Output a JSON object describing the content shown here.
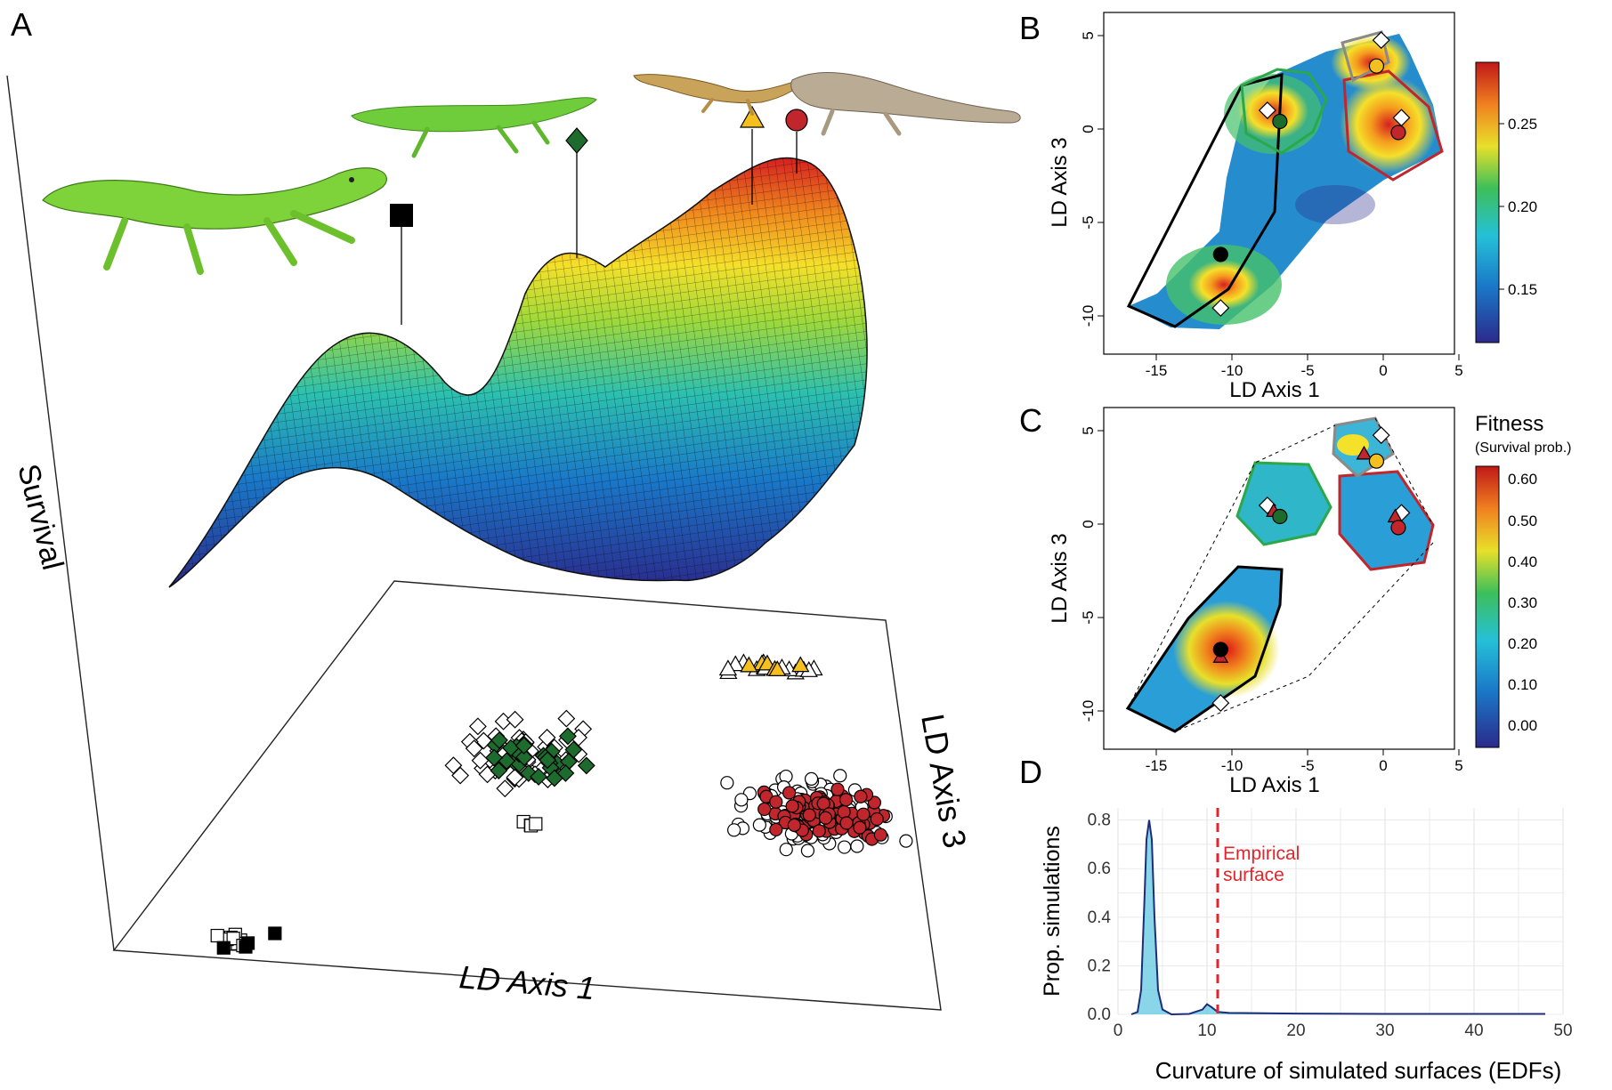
{
  "panels": {
    "a": {
      "letter": "A",
      "z_label": "Survival",
      "x_label": "LD Axis 1",
      "y_label": "LD Axis 3"
    },
    "b": {
      "letter": "B",
      "x_label": "LD Axis 1",
      "y_label": "LD Axis 3",
      "x_ticks": [
        "-15",
        "-10",
        "-5",
        "0",
        "5"
      ],
      "y_ticks": [
        "5",
        "0",
        "-5",
        "-10"
      ],
      "colorbar_ticks": [
        "0.25",
        "0.20",
        "0.15"
      ]
    },
    "c": {
      "letter": "C",
      "x_label": "LD Axis 1",
      "y_label": "LD Axis 3",
      "x_ticks": [
        "-15",
        "-10",
        "-5",
        "0",
        "5"
      ],
      "y_ticks": [
        "5",
        "0",
        "-5",
        "-10"
      ],
      "colorbar_title": "Fitness",
      "colorbar_subtitle": "(Survival prob.)",
      "colorbar_ticks": [
        "0.60",
        "0.50",
        "0.40",
        "0.30",
        "0.20",
        "0.10",
        "0.00"
      ]
    },
    "d": {
      "letter": "D"
    }
  },
  "colors": {
    "green": "#1e6b2e",
    "yellow": "#f4c020",
    "red": "#c0262c",
    "black": "#000000"
  },
  "chart_data": [
    {
      "type": "scatter",
      "panel": "A",
      "xlabel": "LD Axis 1",
      "ylabel": "LD Axis 3",
      "zlabel": "Survival",
      "peak_markers": [
        "square-black",
        "diamond-green",
        "triangle-yellow",
        "circle-red"
      ],
      "series": [
        {
          "marker": "square",
          "color": "#000000",
          "x": [
            0.5,
            0.6,
            0.6,
            0.7
          ],
          "y": [
            0.08,
            0.1,
            0.13,
            0.22
          ]
        },
        {
          "marker": "diamond",
          "color": "#1e6b2e",
          "x": [
            1.2,
            1.5,
            1.8,
            2.1
          ],
          "y": [
            1.6,
            1.9,
            1.75,
            1.7
          ]
        },
        {
          "marker": "triangle",
          "color": "#f4c020",
          "x": [
            2.8,
            3.1,
            3.4
          ],
          "y": [
            2.6,
            2.55,
            2.6
          ]
        },
        {
          "marker": "circle",
          "color": "#c0262c",
          "x": [
            3.0,
            3.3,
            3.6,
            3.9
          ],
          "y": [
            1.3,
            1.5,
            1.7,
            1.4
          ]
        }
      ]
    },
    {
      "type": "heatmap",
      "panel": "B",
      "xlabel": "LD Axis 1",
      "ylabel": "LD Axis 3",
      "xlim": [
        -17.5,
        5
      ],
      "ylim": [
        -12,
        6.5
      ],
      "color_range": [
        0.12,
        0.29
      ],
      "points": [
        {
          "marker": "circle",
          "color": "#000000",
          "x": -10,
          "y": -6.6
        },
        {
          "marker": "circle",
          "color": "#1e6b2e",
          "x": -6.2,
          "y": 0.6
        },
        {
          "marker": "circle",
          "color": "#f4c020",
          "x": 0,
          "y": 3.6
        },
        {
          "marker": "circle",
          "color": "#c0262c",
          "x": 1.4,
          "y": 0
        }
      ]
    },
    {
      "type": "heatmap",
      "panel": "C",
      "xlabel": "LD Axis 1",
      "ylabel": "LD Axis 3",
      "xlim": [
        -17.5,
        5
      ],
      "ylim": [
        -12,
        6.5
      ],
      "color_range": [
        -0.05,
        0.65
      ],
      "points": [
        {
          "marker": "circle",
          "color": "#000000",
          "x": -10,
          "y": -6.6
        },
        {
          "marker": "circle",
          "color": "#1e6b2e",
          "x": -6.2,
          "y": 0.6
        },
        {
          "marker": "circle",
          "color": "#f4c020",
          "x": 0,
          "y": 3.6
        },
        {
          "marker": "circle",
          "color": "#c0262c",
          "x": 1.4,
          "y": 0
        }
      ]
    },
    {
      "type": "area",
      "panel": "D",
      "xlabel": "Curvature of simulated surfaces (EDFs)",
      "ylabel": "Prop. simulations",
      "xlim": [
        0,
        50
      ],
      "ylim": [
        0,
        0.85
      ],
      "x_ticks": [
        "0",
        "10",
        "20",
        "30",
        "40",
        "50"
      ],
      "y_ticks": [
        "0.0",
        "0.2",
        "0.4",
        "0.6",
        "0.8"
      ],
      "grid": true,
      "x": [
        1.5,
        2.2,
        2.6,
        3.0,
        3.2,
        3.5,
        3.8,
        4.1,
        4.5,
        5.0,
        6.0,
        8.0,
        9.5,
        10.0,
        10.5,
        11.2,
        12.5,
        20,
        30,
        40,
        48
      ],
      "y": [
        0.0,
        0.01,
        0.1,
        0.5,
        0.72,
        0.8,
        0.72,
        0.4,
        0.1,
        0.02,
        0.0,
        0.002,
        0.02,
        0.042,
        0.03,
        0.01,
        0.006,
        0.003,
        0.002,
        0.002,
        0.002
      ],
      "annotation": {
        "label": "Empirical",
        "label2": "surface",
        "x": 11.2,
        "color": "#e0262c"
      }
    }
  ]
}
